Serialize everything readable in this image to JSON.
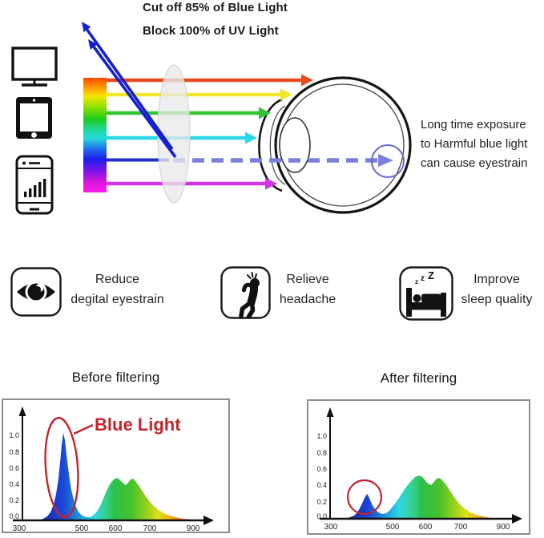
{
  "header": {
    "line1": "Cut off 85% of Blue Light",
    "line2": "Block 100% of UV Light"
  },
  "eye_note": {
    "lines": [
      "Long time exposure",
      "to Harmful blue light",
      "can cause eyestrain"
    ]
  },
  "devices": [
    {
      "icon": "monitor-icon"
    },
    {
      "icon": "tablet-icon"
    },
    {
      "icon": "smartphone-icon"
    }
  ],
  "benefits": [
    {
      "icon": "eye-icon",
      "lines": [
        "Reduce",
        "degital eyestrain"
      ]
    },
    {
      "icon": "headache-icon",
      "lines": [
        "Relieve",
        "headache"
      ]
    },
    {
      "icon": "sleep-icon",
      "lines": [
        "Improve",
        "sleep quality"
      ],
      "zzz": [
        "z",
        "z",
        "Z"
      ]
    }
  ],
  "charts": {
    "before": {
      "title": "Before filtering",
      "annotation": "Blue Light",
      "y_ticks": [
        "1.0",
        "0.8",
        "0.6",
        "0.4",
        "0.2",
        "0.0"
      ],
      "x_ticks": [
        "300",
        "500",
        "600",
        "700",
        "900"
      ],
      "curve": [
        [
          44,
          150
        ],
        [
          50,
          148
        ],
        [
          55,
          145
        ],
        [
          59,
          140
        ],
        [
          63,
          130
        ],
        [
          66,
          117
        ],
        [
          69,
          98
        ],
        [
          71,
          78
        ],
        [
          73,
          56
        ],
        [
          75,
          41
        ],
        [
          77,
          50
        ],
        [
          79,
          68
        ],
        [
          82,
          92
        ],
        [
          85,
          112
        ],
        [
          89,
          128
        ],
        [
          93,
          138
        ],
        [
          97,
          143
        ],
        [
          101,
          145
        ],
        [
          105,
          146
        ],
        [
          109,
          146
        ],
        [
          113,
          143
        ],
        [
          117,
          139
        ],
        [
          121,
          132
        ],
        [
          125,
          123
        ],
        [
          129,
          113
        ],
        [
          133,
          105
        ],
        [
          137,
          100
        ],
        [
          141,
          97
        ],
        [
          145,
          99
        ],
        [
          148,
          102
        ],
        [
          151,
          105
        ],
        [
          153,
          106
        ],
        [
          156,
          103
        ],
        [
          159,
          99
        ],
        [
          162,
          98
        ],
        [
          165,
          101
        ],
        [
          168,
          105
        ],
        [
          172,
          111
        ],
        [
          176,
          117
        ],
        [
          180,
          123
        ],
        [
          184,
          128
        ],
        [
          189,
          133
        ],
        [
          194,
          137
        ],
        [
          200,
          141
        ],
        [
          207,
          144
        ],
        [
          215,
          146
        ],
        [
          224,
          148
        ],
        [
          235,
          149
        ],
        [
          247,
          150
        ],
        [
          255,
          150
        ]
      ]
    },
    "after": {
      "title": "After filtering",
      "y_ticks": [
        "1.0",
        "0.8",
        "0.6",
        "0.4",
        "0.2",
        "0.0"
      ],
      "x_ticks": [
        "300",
        "500",
        "600",
        "700",
        "900"
      ],
      "curve": [
        [
          46,
          147
        ],
        [
          52,
          145
        ],
        [
          57,
          143
        ],
        [
          61,
          139
        ],
        [
          64,
          134
        ],
        [
          67,
          128
        ],
        [
          70,
          121
        ],
        [
          73,
          116
        ],
        [
          75,
          119
        ],
        [
          78,
          126
        ],
        [
          81,
          132
        ],
        [
          85,
          137
        ],
        [
          89,
          140
        ],
        [
          93,
          141
        ],
        [
          97,
          140
        ],
        [
          101,
          137
        ],
        [
          105,
          132
        ],
        [
          109,
          127
        ],
        [
          113,
          121
        ],
        [
          118,
          113
        ],
        [
          123,
          106
        ],
        [
          128,
          100
        ],
        [
          133,
          95
        ],
        [
          137,
          93
        ],
        [
          141,
          94
        ],
        [
          145,
          98
        ],
        [
          148,
          102
        ],
        [
          151,
          104
        ],
        [
          153,
          105
        ],
        [
          156,
          102
        ],
        [
          159,
          98
        ],
        [
          162,
          96
        ],
        [
          165,
          97
        ],
        [
          168,
          100
        ],
        [
          172,
          105
        ],
        [
          176,
          111
        ],
        [
          180,
          117
        ],
        [
          185,
          124
        ],
        [
          190,
          130
        ],
        [
          196,
          135
        ],
        [
          202,
          139
        ],
        [
          209,
          142
        ],
        [
          217,
          144
        ],
        [
          227,
          146
        ],
        [
          239,
          147
        ],
        [
          258,
          147
        ]
      ]
    }
  },
  "chart_data": [
    {
      "type": "area",
      "title": "Before filtering",
      "xlabel": "",
      "ylabel": "",
      "x_tick_labels": [
        300,
        500,
        600,
        700,
        900
      ],
      "y_tick_labels": [
        0.0,
        0.2,
        0.4,
        0.6,
        0.8,
        1.0
      ],
      "ylim": [
        0,
        1.1
      ],
      "annotation": "Blue Light (circled blue emission peak)",
      "x_wavelength_nm": [
        360,
        390,
        410,
        425,
        440,
        455,
        470,
        485,
        500,
        520,
        545,
        570,
        595,
        625,
        645,
        670,
        700,
        750,
        800,
        860,
        900
      ],
      "y_intensity": [
        0.0,
        0.05,
        0.2,
        0.5,
        1.03,
        0.55,
        0.22,
        0.06,
        0.04,
        0.1,
        0.25,
        0.4,
        0.47,
        0.39,
        0.47,
        0.3,
        0.16,
        0.06,
        0.03,
        0.01,
        0.0
      ]
    },
    {
      "type": "area",
      "title": "After filtering",
      "xlabel": "",
      "ylabel": "",
      "x_tick_labels": [
        300,
        500,
        600,
        700,
        900
      ],
      "y_tick_labels": [
        0.0,
        0.2,
        0.4,
        0.6,
        0.8,
        1.0
      ],
      "ylim": [
        0,
        1.1
      ],
      "annotation": "reduced blue peak circled in red",
      "x_wavelength_nm": [
        370,
        400,
        420,
        435,
        450,
        470,
        490,
        510,
        535,
        560,
        585,
        615,
        640,
        665,
        700,
        750,
        800,
        860,
        900
      ],
      "y_intensity": [
        0.0,
        0.1,
        0.3,
        0.2,
        0.07,
        0.06,
        0.1,
        0.2,
        0.35,
        0.5,
        0.51,
        0.41,
        0.49,
        0.35,
        0.17,
        0.07,
        0.03,
        0.01,
        0.0
      ]
    }
  ],
  "colors": {
    "annotation_red": "#c2252c",
    "arrow_red": "#e84a1f",
    "arrow_yellow": "#f0e829",
    "arrow_green": "#33c333",
    "arrow_cyan": "#29d8e8",
    "arrow_blue_solid": "#1d2ec9",
    "arrow_blue_dashed": "#7b80da",
    "arrow_magenta": "#d235e2",
    "reflected_blue": "#1520cd"
  }
}
